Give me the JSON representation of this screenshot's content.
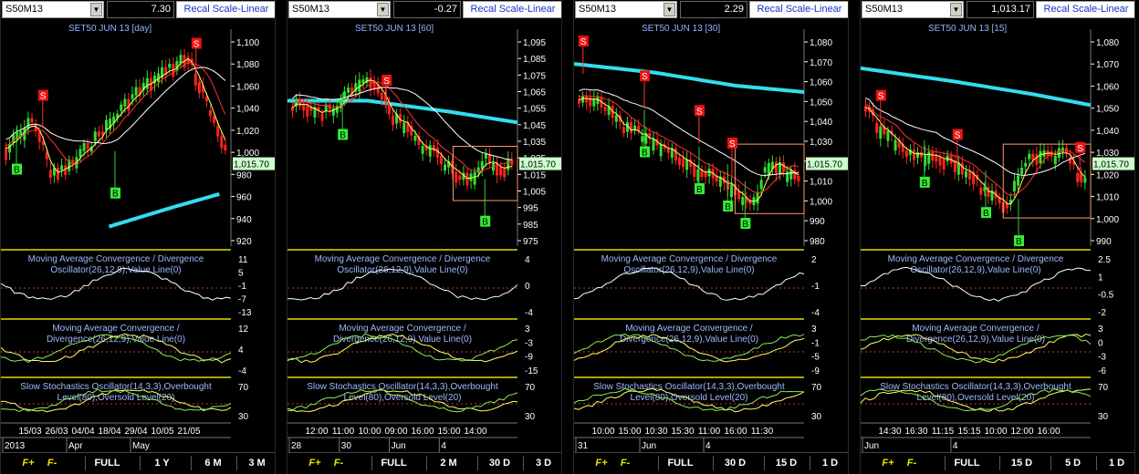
{
  "panels": [
    {
      "symbol": "S50M13",
      "value": "7.30",
      "recal_label": "Recal Scale-Linear",
      "title": "SET50 JUN 13   [day]",
      "price_ticks": [
        "1,100",
        "1,080",
        "1,060",
        "1,040",
        "1,020",
        "1,000",
        "980",
        "960",
        "940",
        "920"
      ],
      "last_price": "1,015.70",
      "macd1_label": [
        "Moving Average Convergence / Divergence",
        "Oscillator(26,12,9),Value Line(0)"
      ],
      "macd1_ticks": [
        "11",
        "5",
        "-1",
        "-7",
        "-13"
      ],
      "macd2_label": [
        "Moving Average Convergence /",
        "Divergence(26,12,9),Value Line(0)"
      ],
      "macd2_ticks": [
        "12",
        "4",
        "-4"
      ],
      "stoch_label": [
        "Slow Stochastics Oscillator(14,3,3),Overbought",
        "Level(80),Oversold Level(20)"
      ],
      "stoch_ticks": [
        "70",
        "30"
      ],
      "time_labels": [
        "15/03",
        "26/03",
        "04/04",
        "18/04",
        "29/04",
        "10/05",
        "21/05"
      ],
      "date_labels": [
        "2013",
        "Apr",
        "May"
      ],
      "bottom_buttons": [
        "F+",
        "F-",
        "FULL",
        "1 Y",
        "6 M",
        "3 M"
      ]
    },
    {
      "symbol": "S50M13",
      "value": "-0.27",
      "recal_label": "Recal Scale-Linear",
      "title": "SET50 JUN 13   [60]",
      "price_ticks": [
        "1,095",
        "1,085",
        "1,075",
        "1,065",
        "1,055",
        "1,045",
        "1,035",
        "1,025",
        "1,015",
        "1,005",
        "995",
        "985",
        "975"
      ],
      "last_price": "1,015.70",
      "macd1_label": [
        "Moving Average Convergence / Divergence",
        "Oscillator(26,12,9),Value Line(0)"
      ],
      "macd1_ticks": [
        "4",
        "0",
        "-4"
      ],
      "macd2_label": [
        "Moving Average Convergence /",
        "Divergence(26,12,9),Value Line(0)"
      ],
      "macd2_ticks": [
        "3",
        "-3",
        "-9",
        "-15"
      ],
      "stoch_label": [
        "Slow Stochastics Oscillator(14,3,3),Overbought",
        "Level(80),Oversold Level(20)"
      ],
      "stoch_ticks": [
        "70",
        "30"
      ],
      "time_labels": [
        "12:00",
        "11:00",
        "10:00",
        "09:00",
        "16:00",
        "15:00",
        "14:00"
      ],
      "date_labels": [
        "28",
        "30",
        "Jun",
        "4"
      ],
      "bottom_buttons": [
        "F+",
        "F-",
        "FULL",
        "2 M",
        "30 D",
        "3 D"
      ]
    },
    {
      "symbol": "S50M13",
      "value": "2.29",
      "recal_label": "Recal Scale-Linear",
      "title": "SET50 JUN 13   [30]",
      "price_ticks": [
        "1,080",
        "1,070",
        "1,060",
        "1,050",
        "1,040",
        "1,030",
        "1,020",
        "1,010",
        "1,000",
        "990",
        "980"
      ],
      "last_price": "1,015.70",
      "macd1_label": [
        "Moving Average Convergence / Divergence",
        "Oscillator(26,12,9),Value Line(0)"
      ],
      "macd1_ticks": [
        "2",
        "-1",
        "-4"
      ],
      "macd2_label": [
        "Moving Average Convergence /",
        "Divergence(26,12,9),Value Line(0)"
      ],
      "macd2_ticks": [
        "3",
        "-1",
        "-5",
        "-9"
      ],
      "stoch_label": [
        "Slow Stochastics Oscillator(14,3,3),Overbought",
        "Level(80),Oversold Level(20)"
      ],
      "stoch_ticks": [
        "70",
        "30"
      ],
      "time_labels": [
        "10:00",
        "15:00",
        "10:30",
        "15:30",
        "11:00",
        "16:00",
        "11:30"
      ],
      "date_labels": [
        "31",
        "Jun",
        "4"
      ],
      "bottom_buttons": [
        "F+",
        "F-",
        "FULL",
        "30 D",
        "15 D",
        "1 D"
      ]
    },
    {
      "symbol": "S50M13",
      "value": "1,013.17",
      "recal_label": "Recal Scale-Linear",
      "title": "SET50 JUN 13   [15]",
      "price_ticks": [
        "1,080",
        "1,070",
        "1,060",
        "1,050",
        "1,040",
        "1,030",
        "1,020",
        "1,010",
        "1,000",
        "990"
      ],
      "last_price": "1,015.70",
      "macd1_label": [
        "Moving Average Convergence / Divergence",
        "Oscillator(26,12,9),Value Line(0)"
      ],
      "macd1_ticks": [
        "2.5",
        "1",
        "-0.5",
        "-2"
      ],
      "macd2_label": [
        "Moving Average Convergence /",
        "Divergence(26,12,9),Value Line(0)"
      ],
      "macd2_ticks": [
        "3",
        "0",
        "-3",
        "-6"
      ],
      "stoch_label": [
        "Slow Stochastics Oscillator(14,3,3),Overbought",
        "Level(80),Oversold Level(20)"
      ],
      "stoch_ticks": [
        "70",
        "30"
      ],
      "time_labels": [
        "14:30",
        "16:30",
        "11:15",
        "15:15",
        "10:00",
        "12:00",
        "16:00"
      ],
      "date_labels": [
        "Jun",
        "4"
      ],
      "bottom_buttons": [
        "F+",
        "F-",
        "FULL",
        "15 D",
        "5 D",
        "1 D"
      ]
    }
  ],
  "signal_letters": {
    "buy": "B",
    "sell": "S"
  },
  "icons": [
    "dropdown-arrow-icon"
  ],
  "colors": {
    "up": "#33dd33",
    "down": "#ff2222",
    "ma_fast": "#ffff66",
    "ma_mid": "#ff3030",
    "ma_slow": "#ffffff",
    "ma_long": "#33ddee",
    "divider": "#e8d800",
    "value_bg": "#ccffcc"
  }
}
